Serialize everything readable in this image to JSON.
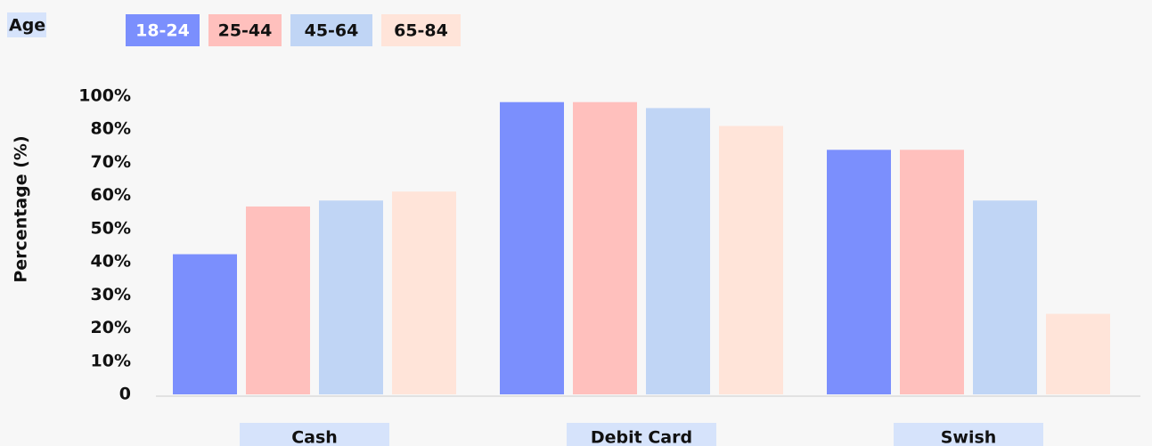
{
  "chart_data": {
    "type": "bar",
    "legend_title": "Age",
    "y_axis_title": "Percentage (%)",
    "y_axis_labels": [
      "100%",
      "80%",
      "70%",
      "60%",
      "50%",
      "40%",
      "30%",
      "20%",
      "10%",
      "0"
    ],
    "ylim": [
      0,
      100
    ],
    "categories": [
      "Cash",
      "Debit Card",
      "Swish"
    ],
    "series": [
      {
        "name": "18-24",
        "color": "#7b8ffd",
        "values": [
          47,
          98,
          82
        ]
      },
      {
        "name": "25-44",
        "color": "#ffc0bd",
        "values": [
          63,
          98,
          82
        ]
      },
      {
        "name": "45-64",
        "color": "#c0d5f5",
        "values": [
          65,
          96,
          65
        ]
      },
      {
        "name": "65-84",
        "color": "#ffe4d9",
        "values": [
          68,
          90,
          27
        ]
      }
    ]
  }
}
